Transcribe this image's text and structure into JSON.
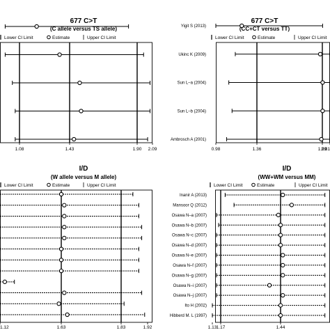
{
  "chart_data": [
    {
      "type": "forest",
      "title": "677 C>T",
      "subtitle": "(C allele versus TS allele)",
      "legend": [
        "Lower CI Limit",
        "Estimate",
        "Upper CI Limit"
      ],
      "x_ticks": [
        "1.08",
        "1.43",
        "1.90",
        "2.09"
      ],
      "xlim": [
        0.98,
        2.09
      ],
      "reference_lines": [
        1.08,
        1.43,
        1.9
      ],
      "studies": [
        {
          "label": "",
          "estimate": 1.2,
          "lower": 0.98,
          "upper": 1.84
        },
        {
          "label": "",
          "estimate": 1.36,
          "lower": 0.98,
          "upper": 1.98
        },
        {
          "label": "",
          "estimate": 1.5,
          "lower": 1.03,
          "upper": 2.06
        },
        {
          "label": "",
          "estimate": 1.51,
          "lower": 1.05,
          "upper": 2.06
        },
        {
          "label": "",
          "estimate": 1.46,
          "lower": 1.05,
          "upper": 2.03
        }
      ]
    },
    {
      "type": "forest",
      "title": "677 C>T",
      "subtitle": "(CC+CT versus TT)",
      "legend": [
        "Lower CI Limit",
        "Estimate",
        "Upper CI Limit"
      ],
      "x_ticks": [
        "0.98",
        "1.36",
        "1.99",
        "2.81"
      ],
      "xlim": [
        0.98,
        2.81
      ],
      "reference_lines": [
        1.36,
        1.99
      ],
      "studies": [
        {
          "label": "Yigit S (2013)",
          "estimate": 1.22,
          "lower": 0.98,
          "upper": 2.02
        },
        {
          "label": "Ukinc K (2009)",
          "estimate": 1.97,
          "lower": 1.16,
          "upper": 2.81
        },
        {
          "label": "Sun L–a (2004)",
          "estimate": 2.02,
          "lower": 1.1,
          "upper": 2.81
        },
        {
          "label": "Sun L–b (2004)",
          "estimate": 2.02,
          "lower": 1.13,
          "upper": 2.81
        },
        {
          "label": "Ambrosch A (2001)",
          "estimate": 1.98,
          "lower": 1.08,
          "upper": 2.81
        }
      ]
    },
    {
      "type": "forest",
      "title": "I/D",
      "subtitle": "(W allele versus M allele)",
      "legend": [
        "Lower CI Limit",
        "Estimate",
        "Upper CI Limit"
      ],
      "x_ticks": [
        "1.12",
        "1.63",
        "1.83",
        "1.92"
      ],
      "xlim": [
        1.12,
        1.92
      ],
      "reference_lines": [
        1.63,
        1.83
      ],
      "studies": [
        {
          "label": "",
          "estimate": 1.63,
          "lower": 1.12,
          "upper": 1.87
        },
        {
          "label": "",
          "estimate": 1.64,
          "lower": 1.12,
          "upper": 1.89
        },
        {
          "label": "",
          "estimate": 1.64,
          "lower": 1.12,
          "upper": 1.89
        },
        {
          "label": "",
          "estimate": 1.64,
          "lower": 1.12,
          "upper": 1.9
        },
        {
          "label": "",
          "estimate": 1.64,
          "lower": 1.12,
          "upper": 1.9
        },
        {
          "label": "",
          "estimate": 1.63,
          "lower": 1.12,
          "upper": 1.89
        },
        {
          "label": "",
          "estimate": 1.63,
          "lower": 1.12,
          "upper": 1.89
        },
        {
          "label": "",
          "estimate": 1.63,
          "lower": 1.12,
          "upper": 1.89
        },
        {
          "label": "",
          "estimate": 1.16,
          "lower": 1.12,
          "upper": 1.24
        },
        {
          "label": "",
          "estimate": 1.64,
          "lower": 1.12,
          "upper": 1.9
        },
        {
          "label": "",
          "estimate": 1.61,
          "lower": 1.12,
          "upper": 1.84
        },
        {
          "label": "",
          "estimate": 1.65,
          "lower": 1.12,
          "upper": 1.91
        }
      ]
    },
    {
      "type": "forest",
      "title": "I/D",
      "subtitle": "(WW+WM versus MM)",
      "legend": [
        "Lower CI Limit",
        "Estimate",
        "Upper CI Limit"
      ],
      "x_ticks": [
        "1.13",
        "1.17",
        "1.44"
      ],
      "xlim": [
        1.13,
        1.64
      ],
      "reference_lines": [
        1.17,
        1.44
      ],
      "studies": [
        {
          "label": "Inanir A (2013)",
          "estimate": 1.45,
          "lower": 1.19,
          "upper": 1.64
        },
        {
          "label": "Mansoor Q (2012)",
          "estimate": 1.49,
          "lower": 1.23,
          "upper": 1.64
        },
        {
          "label": "Osawa N–a (2007)",
          "estimate": 1.43,
          "lower": 1.15,
          "upper": 1.64
        },
        {
          "label": "Osawa N–b (2007)",
          "estimate": 1.44,
          "lower": 1.16,
          "upper": 1.64
        },
        {
          "label": "Osawa N–c (2007)",
          "estimate": 1.44,
          "lower": 1.15,
          "upper": 1.64
        },
        {
          "label": "Osawa N–d (2007)",
          "estimate": 1.44,
          "lower": 1.15,
          "upper": 1.64
        },
        {
          "label": "Osawa N–e (2007)",
          "estimate": 1.45,
          "lower": 1.15,
          "upper": 1.64
        },
        {
          "label": "Osawa N–f (2007)",
          "estimate": 1.45,
          "lower": 1.15,
          "upper": 1.64
        },
        {
          "label": "Osawa N–g (2007)",
          "estimate": 1.45,
          "lower": 1.15,
          "upper": 1.64
        },
        {
          "label": "Osawa N–i (2007)",
          "estimate": 1.39,
          "lower": 1.15,
          "upper": 1.64
        },
        {
          "label": "Osawa N–j (2007)",
          "estimate": 1.45,
          "lower": 1.15,
          "upper": 1.64
        },
        {
          "label": "Ito H (2002)",
          "estimate": 1.44,
          "lower": 1.13,
          "upper": 1.64
        },
        {
          "label": "Hibberd M. L (1997)",
          "estimate": 1.44,
          "lower": 1.13,
          "upper": 1.64
        }
      ]
    }
  ]
}
